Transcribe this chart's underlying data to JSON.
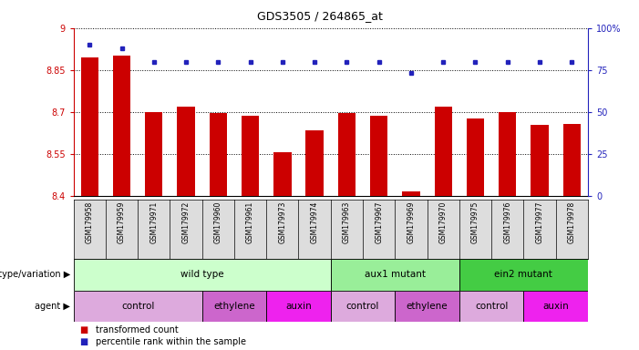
{
  "title": "GDS3505 / 264865_at",
  "samples": [
    "GSM179958",
    "GSM179959",
    "GSM179971",
    "GSM179972",
    "GSM179960",
    "GSM179961",
    "GSM179973",
    "GSM179974",
    "GSM179963",
    "GSM179967",
    "GSM179969",
    "GSM179970",
    "GSM179975",
    "GSM179976",
    "GSM179977",
    "GSM179978"
  ],
  "bar_values": [
    8.895,
    8.9,
    8.7,
    8.72,
    8.695,
    8.686,
    8.555,
    8.635,
    8.695,
    8.688,
    8.415,
    8.72,
    8.676,
    8.698,
    8.655,
    8.658
  ],
  "dot_values": [
    90,
    88,
    80,
    80,
    80,
    80,
    80,
    80,
    80,
    80,
    73,
    80,
    80,
    80,
    80,
    80
  ],
  "bar_color": "#cc0000",
  "dot_color": "#2222bb",
  "ylim_left": [
    8.4,
    9.0
  ],
  "ylim_right": [
    0,
    100
  ],
  "yticks_left": [
    8.4,
    8.55,
    8.7,
    8.85,
    9.0
  ],
  "ytick_labels_left": [
    "8.4",
    "8.55",
    "8.7",
    "8.85",
    "9"
  ],
  "yticks_right": [
    0,
    25,
    50,
    75,
    100
  ],
  "ytick_labels_right": [
    "0",
    "25",
    "50",
    "75",
    "100%"
  ],
  "groups": [
    {
      "label": "wild type",
      "start": 0,
      "end": 8,
      "color": "#ccffcc"
    },
    {
      "label": "aux1 mutant",
      "start": 8,
      "end": 12,
      "color": "#99ee99"
    },
    {
      "label": "ein2 mutant",
      "start": 12,
      "end": 16,
      "color": "#44cc44"
    }
  ],
  "agents": [
    {
      "label": "control",
      "start": 0,
      "end": 4,
      "color": "#ddaadd"
    },
    {
      "label": "ethylene",
      "start": 4,
      "end": 6,
      "color": "#cc66cc"
    },
    {
      "label": "auxin",
      "start": 6,
      "end": 8,
      "color": "#ee22ee"
    },
    {
      "label": "control",
      "start": 8,
      "end": 10,
      "color": "#ddaadd"
    },
    {
      "label": "ethylene",
      "start": 10,
      "end": 12,
      "color": "#cc66cc"
    },
    {
      "label": "control",
      "start": 12,
      "end": 14,
      "color": "#ddaadd"
    },
    {
      "label": "auxin",
      "start": 14,
      "end": 16,
      "color": "#ee22ee"
    }
  ],
  "legend_items": [
    {
      "label": "transformed count",
      "color": "#cc0000"
    },
    {
      "label": "percentile rank within the sample",
      "color": "#2222bb"
    }
  ],
  "background_color": "#ffffff",
  "label_genotype": "genotype/variation",
  "label_agent": "agent",
  "sample_bg_color": "#dddddd",
  "bar_width": 0.55
}
